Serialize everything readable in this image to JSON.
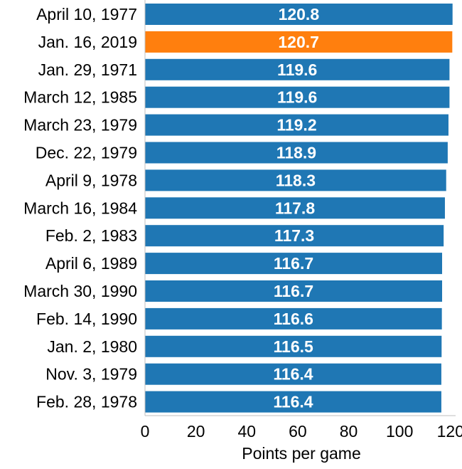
{
  "chart_data": {
    "type": "bar",
    "orientation": "horizontal",
    "categories": [
      "April 10, 1977",
      "Jan. 16, 2019",
      "Jan. 29, 1971",
      "March 12, 1985",
      "March 23, 1979",
      "Dec. 22, 1979",
      "April 9, 1978",
      "March 16, 1984",
      "Feb. 2, 1983",
      "April 6, 1989",
      "March 30, 1990",
      "Feb. 14, 1990",
      "Jan. 2, 1980",
      "Nov. 3, 1979",
      "Feb. 28, 1978"
    ],
    "values": [
      120.8,
      120.7,
      119.6,
      119.6,
      119.2,
      118.9,
      118.3,
      117.8,
      117.3,
      116.7,
      116.7,
      116.6,
      116.5,
      116.4,
      116.4
    ],
    "value_labels": [
      "120.8",
      "120.7",
      "119.6",
      "119.6",
      "119.2",
      "118.9",
      "118.3",
      "117.8",
      "117.3",
      "116.7",
      "116.7",
      "116.6",
      "116.5",
      "116.4",
      "116.4"
    ],
    "highlight_index": 1,
    "xlabel": "Points per game",
    "xlim": [
      0,
      122
    ],
    "xticks": [
      0,
      20,
      40,
      60,
      80,
      100,
      120
    ],
    "xtick_labels": [
      "0",
      "20",
      "40",
      "60",
      "80",
      "100",
      "120"
    ],
    "grid": false,
    "colors": {
      "bar": "#1f77b4",
      "highlight": "#ff7f0e"
    }
  }
}
